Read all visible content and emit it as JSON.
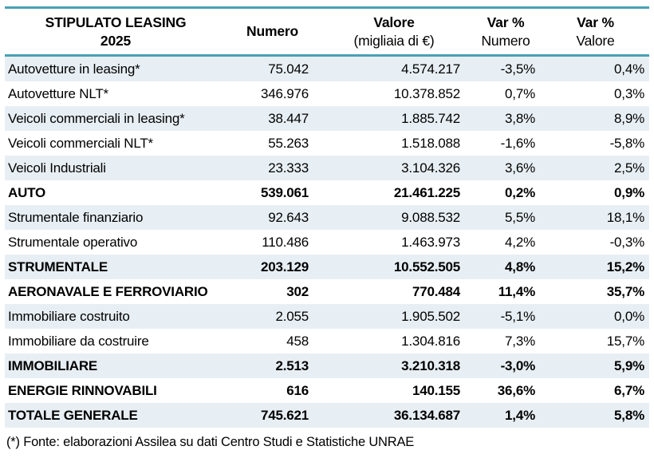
{
  "title": "STIPULATO LEASING 2025",
  "colors": {
    "accent_line": "#4AA0B5",
    "band_row": "#E8EFF4",
    "text": "#000000",
    "background": "#FFFFFF"
  },
  "header": {
    "col1": {
      "line1": "STIPULATO LEASING",
      "line2": "2025"
    },
    "col2": {
      "line1": "Numero"
    },
    "col3": {
      "line1": "Valore",
      "line2": "(migliaia di €)"
    },
    "col4": {
      "line1": "Var %",
      "line2": "Numero"
    },
    "col5": {
      "line1": "Var %",
      "line2": "Valore"
    }
  },
  "rows": [
    {
      "label": "Autovetture in leasing*",
      "numero": "75.042",
      "valore": "4.574.217",
      "var_numero": "-3,5%",
      "var_valore": "0,4%",
      "total": false
    },
    {
      "label": "Autovetture NLT*",
      "numero": "346.976",
      "valore": "10.378.852",
      "var_numero": "0,7%",
      "var_valore": "0,3%",
      "total": false
    },
    {
      "label": "Veicoli commerciali in leasing*",
      "numero": "38.447",
      "valore": "1.885.742",
      "var_numero": "3,8%",
      "var_valore": "8,9%",
      "total": false
    },
    {
      "label": "Veicoli commerciali NLT*",
      "numero": "55.263",
      "valore": "1.518.088",
      "var_numero": "-1,6%",
      "var_valore": "-5,8%",
      "total": false
    },
    {
      "label": "Veicoli Industriali",
      "numero": "23.333",
      "valore": "3.104.326",
      "var_numero": "3,6%",
      "var_valore": "2,5%",
      "total": false
    },
    {
      "label": "AUTO",
      "numero": "539.061",
      "valore": "21.461.225",
      "var_numero": "0,2%",
      "var_valore": "0,9%",
      "total": true
    },
    {
      "label": "Strumentale finanziario",
      "numero": "92.643",
      "valore": "9.088.532",
      "var_numero": "5,5%",
      "var_valore": "18,1%",
      "total": false
    },
    {
      "label": "Strumentale operativo",
      "numero": "110.486",
      "valore": "1.463.973",
      "var_numero": "4,2%",
      "var_valore": "-0,3%",
      "total": false
    },
    {
      "label": "STRUMENTALE",
      "numero": "203.129",
      "valore": "10.552.505",
      "var_numero": "4,8%",
      "var_valore": "15,2%",
      "total": true
    },
    {
      "label": "AERONAVALE E FERROVIARIO",
      "numero": "302",
      "valore": "770.484",
      "var_numero": "11,4%",
      "var_valore": "35,7%",
      "total": true
    },
    {
      "label": "Immobiliare costruito",
      "numero": "2.055",
      "valore": "1.905.502",
      "var_numero": "-5,1%",
      "var_valore": "0,0%",
      "total": false
    },
    {
      "label": "Immobiliare da costruire",
      "numero": "458",
      "valore": "1.304.816",
      "var_numero": "7,3%",
      "var_valore": "15,7%",
      "total": false
    },
    {
      "label": "IMMOBILIARE",
      "numero": "2.513",
      "valore": "3.210.318",
      "var_numero": "-3,0%",
      "var_valore": "5,9%",
      "total": true
    },
    {
      "label": "ENERGIE RINNOVABILI",
      "numero": "616",
      "valore": "140.155",
      "var_numero": "36,6%",
      "var_valore": "6,7%",
      "total": true
    },
    {
      "label": "TOTALE GENERALE",
      "numero": "745.621",
      "valore": "36.134.687",
      "var_numero": "1,4%",
      "var_valore": "5,8%",
      "total": true
    }
  ],
  "footer": {
    "source_note": "(*) Fonte: elaborazioni Assilea su dati Centro Studi e Statistiche UNRAE"
  },
  "chart_data": {
    "type": "table",
    "title": "STIPULATO LEASING 2025",
    "columns": [
      "STIPULATO LEASING 2025",
      "Numero",
      "Valore (migliaia di €)",
      "Var % Numero",
      "Var % Valore"
    ],
    "rows": [
      [
        "Autovetture in leasing*",
        "75.042",
        "4.574.217",
        "-3,5%",
        "0,4%"
      ],
      [
        "Autovetture NLT*",
        "346.976",
        "10.378.852",
        "0,7%",
        "0,3%"
      ],
      [
        "Veicoli commerciali in leasing*",
        "38.447",
        "1.885.742",
        "3,8%",
        "8,9%"
      ],
      [
        "Veicoli commerciali NLT*",
        "55.263",
        "1.518.088",
        "-1,6%",
        "-5,8%"
      ],
      [
        "Veicoli Industriali",
        "23.333",
        "3.104.326",
        "3,6%",
        "2,5%"
      ],
      [
        "AUTO",
        "539.061",
        "21.461.225",
        "0,2%",
        "0,9%"
      ],
      [
        "Strumentale finanziario",
        "92.643",
        "9.088.532",
        "5,5%",
        "18,1%"
      ],
      [
        "Strumentale operativo",
        "110.486",
        "1.463.973",
        "4,2%",
        "-0,3%"
      ],
      [
        "STRUMENTALE",
        "203.129",
        "10.552.505",
        "4,8%",
        "15,2%"
      ],
      [
        "AERONAVALE E FERROVIARIO",
        "302",
        "770.484",
        "11,4%",
        "35,7%"
      ],
      [
        "Immobiliare costruito",
        "2.055",
        "1.905.502",
        "-5,1%",
        "0,0%"
      ],
      [
        "Immobiliare da costruire",
        "458",
        "1.304.816",
        "7,3%",
        "15,7%"
      ],
      [
        "IMMOBILIARE",
        "2.513",
        "3.210.318",
        "-3,0%",
        "5,9%"
      ],
      [
        "ENERGIE RINNOVABILI",
        "616",
        "140.155",
        "36,6%",
        "6,7%"
      ],
      [
        "TOTALE GENERALE",
        "745.621",
        "36.134.687",
        "1,4%",
        "5,8%"
      ]
    ],
    "total_row_labels": [
      "AUTO",
      "STRUMENTALE",
      "AERONAVALE E FERROVIARIO",
      "IMMOBILIARE",
      "ENERGIE RINNOVABILI",
      "TOTALE GENERALE"
    ],
    "source_note": "(*) Fonte: elaborazioni Assilea su dati Centro Studi e Statistiche UNRAE"
  }
}
